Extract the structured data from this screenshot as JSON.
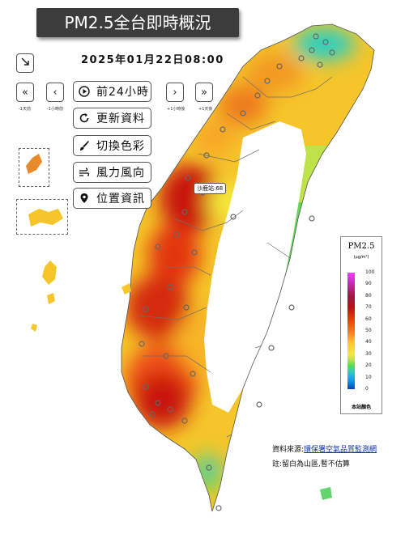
{
  "title": "PM2.5全台即時概況",
  "datetime": "2025年01月22日08:00",
  "nav": {
    "prev_large": "«",
    "prev_small": "‹",
    "next_small": "›",
    "next_large": "»",
    "prev_large_label": "-1天前",
    "prev_small_label": "-1小時前",
    "next_small_label": "+1小時後",
    "next_large_label": "+1天後"
  },
  "menu": {
    "play": "前24小時",
    "refresh": "更新資料",
    "colors": "切換色彩",
    "wind": "風力風向",
    "location": "位置資訊"
  },
  "station_tag": "沙鹿站:68",
  "legend": {
    "title": "PM2.5",
    "unit": "(μg/m³)",
    "ticks": [
      "100",
      "90",
      "80",
      "70",
      "60",
      "50",
      "40",
      "30",
      "20",
      "10",
      "0"
    ],
    "note": "本站顏色"
  },
  "footer": {
    "source_prefix": "資料來源:",
    "source_link": "環保署空氣品質監測網",
    "note": "註:留白為山區,暫不估算"
  },
  "icons": [
    "collapse-arrow-icon",
    "play-icon",
    "refresh-icon",
    "paint-brush-icon",
    "wind-icon",
    "location-pin-icon"
  ],
  "colors": {
    "title_bg": "#3c3c3c",
    "high": "#c30f13",
    "mid": "#f8771a",
    "low": "#5ad657",
    "clean": "#13a2e2"
  }
}
